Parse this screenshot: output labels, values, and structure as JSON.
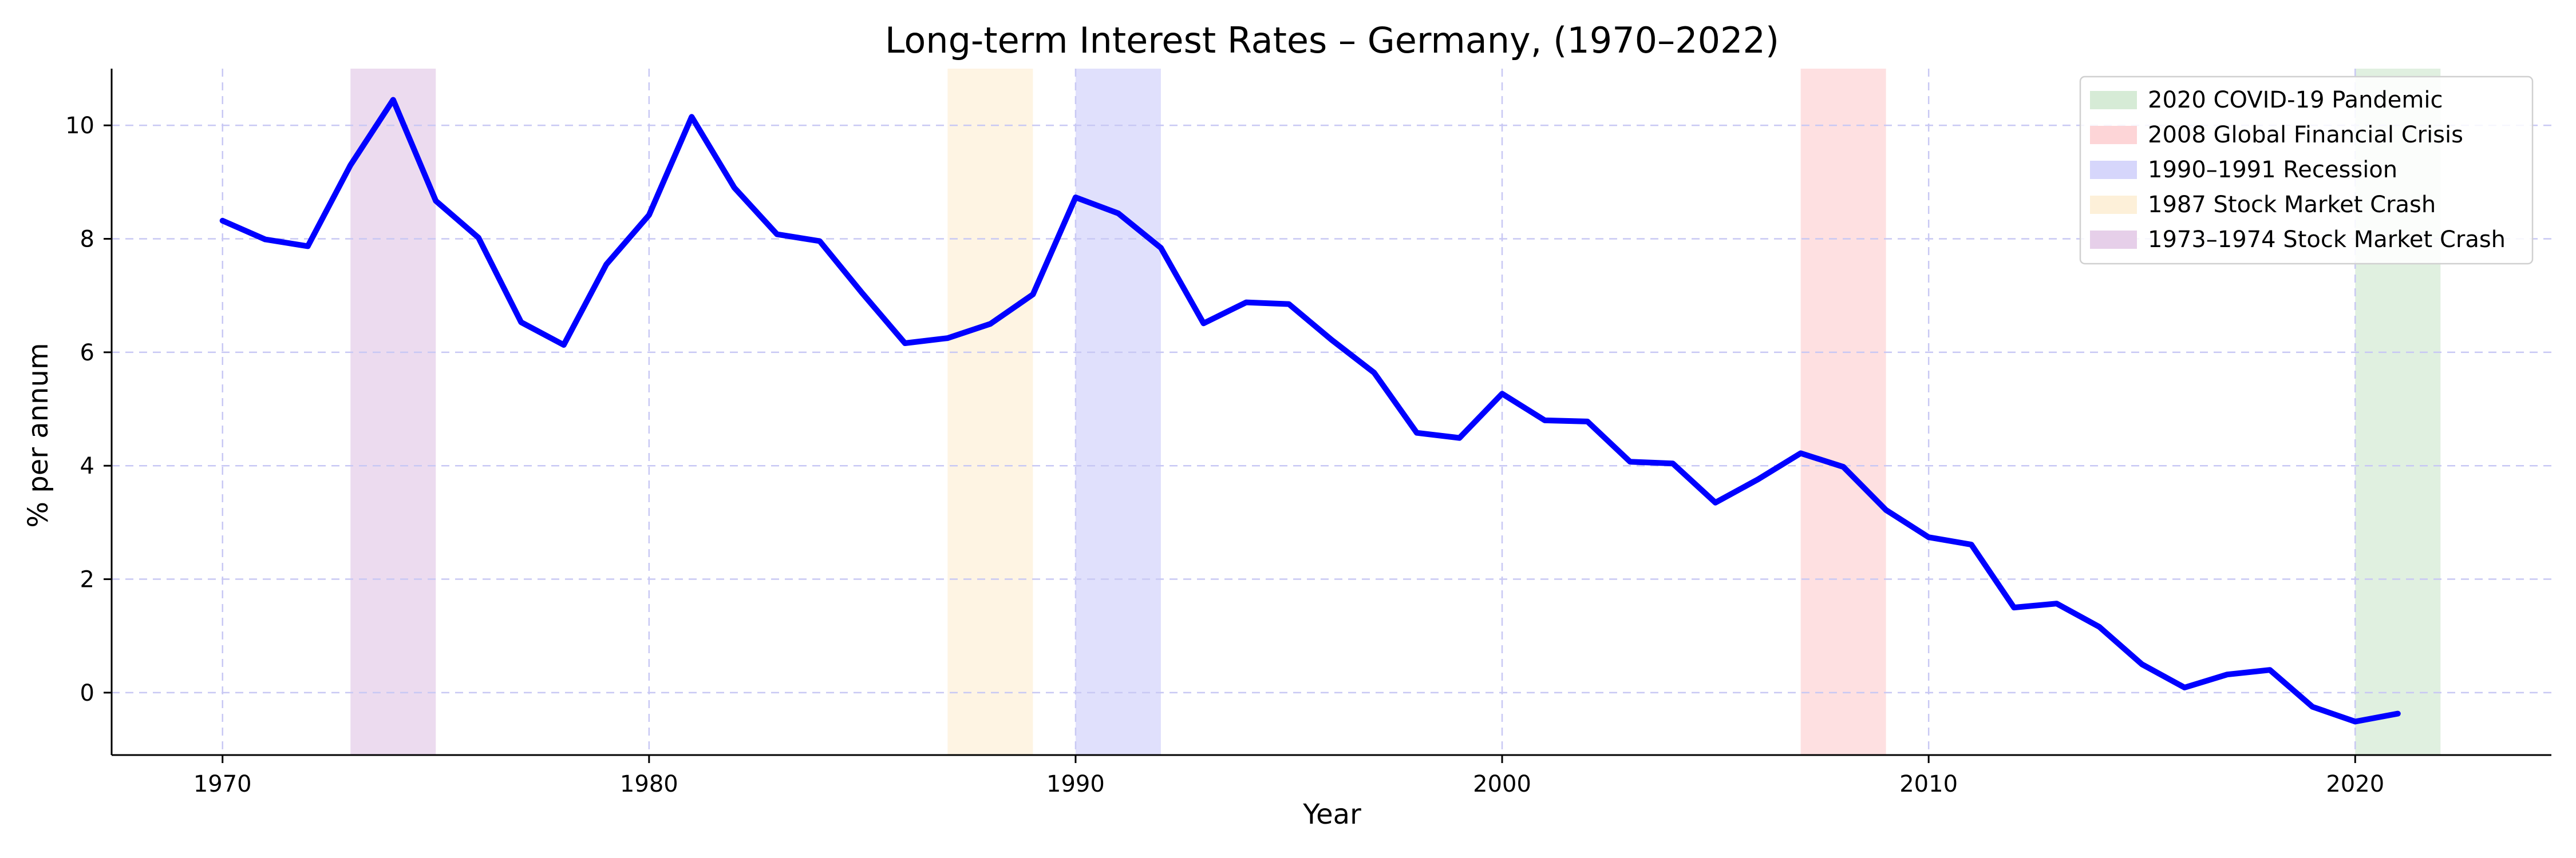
{
  "chart_data": {
    "type": "line",
    "title": "Long-term Interest Rates – Germany, (1970–2022)",
    "xlabel": "Year",
    "ylabel": "% per annum",
    "xlim": [
      1967.4,
      2024.6
    ],
    "ylim": [
      -1.1,
      11.0
    ],
    "x_ticks": [
      1970,
      1980,
      1990,
      2000,
      2010,
      2020
    ],
    "y_ticks": [
      0,
      2,
      4,
      6,
      8,
      10
    ],
    "grid": true,
    "legend_position": "top-right",
    "line_color": "#0000ff",
    "series": [
      {
        "name": "",
        "x": [
          1970,
          1971,
          1972,
          1973,
          1974,
          1975,
          1976,
          1977,
          1978,
          1979,
          1980,
          1981,
          1982,
          1983,
          1984,
          1985,
          1986,
          1987,
          1988,
          1989,
          1990,
          1991,
          1992,
          1993,
          1994,
          1995,
          1996,
          1997,
          1998,
          1999,
          2000,
          2001,
          2002,
          2003,
          2004,
          2005,
          2006,
          2007,
          2008,
          2009,
          2010,
          2011,
          2012,
          2013,
          2014,
          2015,
          2016,
          2017,
          2018,
          2019,
          2020,
          2021
        ],
        "values": [
          8.32,
          7.99,
          7.87,
          9.3,
          10.45,
          8.67,
          8.02,
          6.53,
          6.13,
          7.55,
          8.42,
          10.15,
          8.9,
          8.08,
          7.96,
          7.04,
          6.16,
          6.25,
          6.5,
          7.02,
          8.73,
          8.45,
          7.84,
          6.51,
          6.88,
          6.85,
          6.22,
          5.64,
          4.58,
          4.49,
          5.27,
          4.8,
          4.78,
          4.07,
          4.04,
          3.35,
          3.76,
          4.22,
          3.98,
          3.22,
          2.74,
          2.61,
          1.5,
          1.57,
          1.16,
          0.5,
          0.09,
          0.32,
          0.4,
          -0.25,
          -0.51,
          -0.37
        ]
      }
    ],
    "shaded_periods": [
      {
        "label": "1973–1974 Stock Market Crash",
        "start": 1973,
        "end": 1975,
        "color": "#e6cfe9"
      },
      {
        "label": "1987 Stock Market Crash",
        "start": 1987,
        "end": 1989,
        "color": "#fdf0d9"
      },
      {
        "label": "1990–1991 Recession",
        "start": 1990,
        "end": 1992,
        "color": "#d6d6fb"
      },
      {
        "label": "2008 Global Financial Crisis",
        "start": 2007,
        "end": 2009,
        "color": "#fdd5d7"
      },
      {
        "label": "2020 COVID-19 Pandemic",
        "start": 2020,
        "end": 2022,
        "color": "#d6ebd6"
      }
    ],
    "legend": [
      {
        "label": "2020 COVID-19 Pandemic",
        "color": "#d6ebd6"
      },
      {
        "label": "2008 Global Financial Crisis",
        "color": "#fdd5d7"
      },
      {
        "label": "1990–1991 Recession",
        "color": "#d6d6fb"
      },
      {
        "label": "1987 Stock Market Crash",
        "color": "#fdf0d9"
      },
      {
        "label": "1973–1974 Stock Market Crash",
        "color": "#e6cfe9"
      }
    ]
  }
}
